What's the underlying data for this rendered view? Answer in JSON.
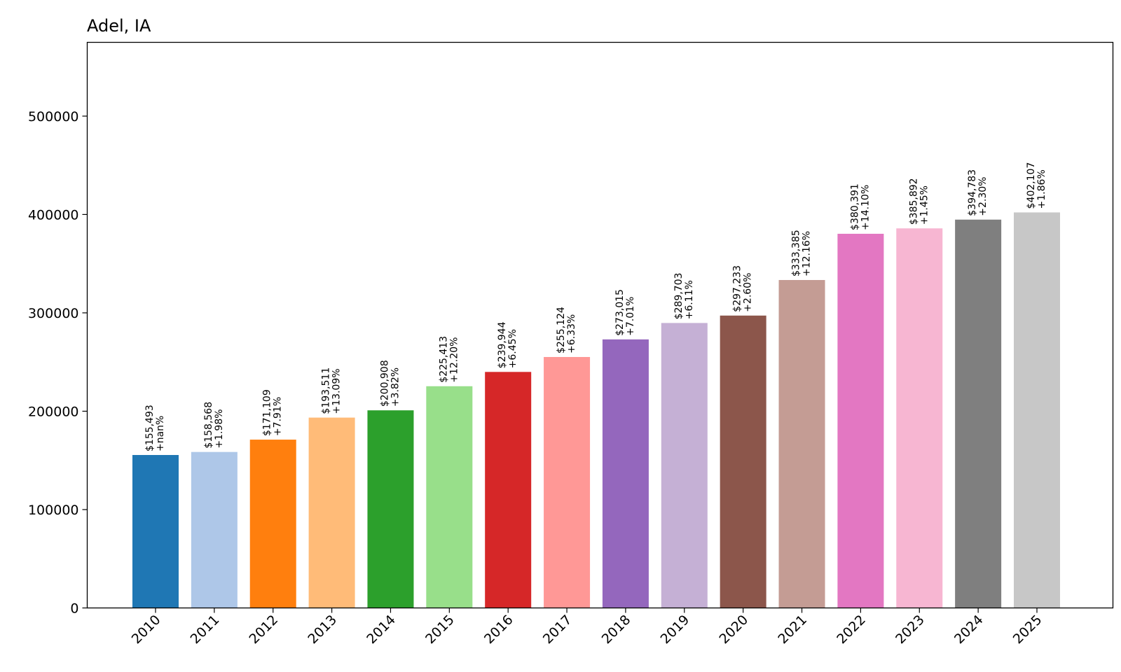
{
  "chart_data": {
    "type": "bar",
    "title": "Adel, IA",
    "xlabel": "",
    "ylabel": "",
    "categories": [
      "2010",
      "2011",
      "2012",
      "2013",
      "2014",
      "2015",
      "2016",
      "2017",
      "2018",
      "2019",
      "2020",
      "2021",
      "2022",
      "2023",
      "2024",
      "2025"
    ],
    "values": [
      155493,
      158568,
      171109,
      193511,
      200908,
      225413,
      239944,
      255124,
      273015,
      289703,
      297233,
      333385,
      380391,
      385892,
      394783,
      402107
    ],
    "value_labels": [
      "$155,493",
      "$158,568",
      "$171,109",
      "$193,511",
      "$200,908",
      "$225,413",
      "$239,944",
      "$255,124",
      "$273,015",
      "$289,703",
      "$297,233",
      "$333,385",
      "$380,391",
      "$385,892",
      "$394,783",
      "$402,107"
    ],
    "change_labels": [
      "+nan%",
      "+1.98%",
      "+7.91%",
      "+13.09%",
      "+3.82%",
      "+12.20%",
      "+6.45%",
      "+6.33%",
      "+7.01%",
      "+6.11%",
      "+2.60%",
      "+12.16%",
      "+14.10%",
      "+1.45%",
      "+2.30%",
      "+1.86%"
    ],
    "colors": [
      "#1f77b4",
      "#aec7e8",
      "#ff7f0e",
      "#ffbb78",
      "#2ca02c",
      "#98df8a",
      "#d62728",
      "#ff9896",
      "#9467bd",
      "#c5b0d5",
      "#8c564b",
      "#c49c94",
      "#e377c2",
      "#f7b6d2",
      "#7f7f7f",
      "#c7c7c7"
    ],
    "yticks": [
      0,
      100000,
      200000,
      300000,
      400000,
      500000
    ],
    "ytick_labels": [
      "0",
      "100000",
      "200000",
      "300000",
      "400000",
      "500000"
    ],
    "ylim": [
      0,
      575000
    ],
    "grid": false,
    "legend": "none"
  }
}
